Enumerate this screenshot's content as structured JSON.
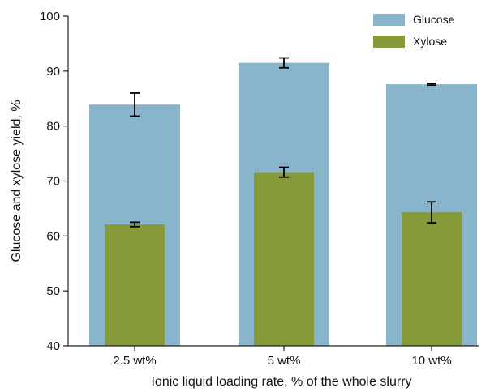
{
  "chart_data": {
    "type": "bar",
    "title": "",
    "xlabel": "Ionic liquid loading rate, % of the whole slurry",
    "ylabel": "Glucose and xylose yield, %",
    "categories": [
      "2.5 wt%",
      "5 wt%",
      "10 wt%"
    ],
    "ylim": [
      40,
      100
    ],
    "yticks": [
      40,
      50,
      60,
      70,
      80,
      90,
      100
    ],
    "grid": false,
    "legend_position": "top-right",
    "series": [
      {
        "name": "Glucose",
        "color": "#88b5cb",
        "values": [
          83.9,
          91.5,
          87.6
        ],
        "errors": [
          2.1,
          0.9,
          0.15
        ]
      },
      {
        "name": "Xylose",
        "color": "#869a39",
        "values": [
          62.1,
          71.6,
          64.3
        ],
        "errors": [
          0.4,
          0.9,
          1.9
        ]
      }
    ]
  }
}
